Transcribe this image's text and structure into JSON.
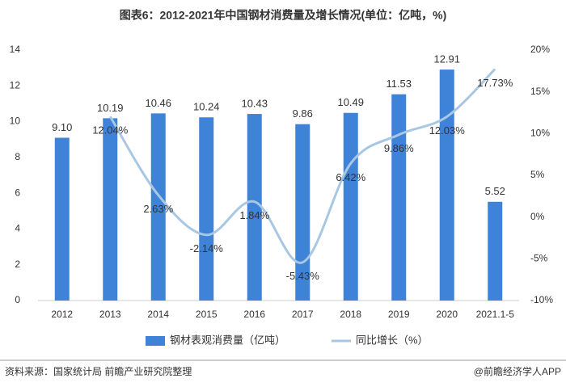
{
  "chart_data": {
    "type": "bar",
    "title": "图表6：2012-2021年中国钢材消费量及增长情况(单位：亿吨，%)",
    "categories": [
      "2012",
      "2013",
      "2014",
      "2015",
      "2016",
      "2017",
      "2018",
      "2019",
      "2020",
      "2021.1-5"
    ],
    "series": [
      {
        "name": "钢材表观消费量（亿吨）",
        "type": "bar",
        "color": "#3f83d8",
        "values": [
          9.1,
          10.19,
          10.46,
          10.24,
          10.43,
          9.86,
          10.49,
          11.53,
          12.91,
          5.52
        ],
        "value_labels": [
          "9.10",
          "10.19",
          "10.46",
          "10.24",
          "10.43",
          "9.86",
          "10.49",
          "11.53",
          "12.91",
          "5.52"
        ]
      },
      {
        "name": "同比增长（%）",
        "type": "line",
        "axis": "y2",
        "color": "#a8c7e3",
        "values": [
          null,
          12.04,
          2.63,
          -2.14,
          1.84,
          -5.43,
          6.42,
          9.86,
          12.03,
          17.73
        ],
        "value_labels": [
          null,
          "12.04%",
          "2.63%",
          "-2.14%",
          "1.84%",
          "-5.43%",
          "6.42%",
          "9.86%",
          "12.03%",
          "17.73%"
        ]
      }
    ],
    "ylim": [
      0,
      14
    ],
    "yticks": [
      0,
      2,
      4,
      6,
      8,
      10,
      12,
      14
    ],
    "y2lim": [
      -10,
      20
    ],
    "y2ticks": [
      {
        "value": -10,
        "label": "-10%"
      },
      {
        "value": -5,
        "label": "-5%"
      },
      {
        "value": 0,
        "label": "0%"
      },
      {
        "value": 5,
        "label": "5%"
      },
      {
        "value": 10,
        "label": "10%"
      },
      {
        "value": 15,
        "label": "15%"
      },
      {
        "value": 20,
        "label": "20%"
      }
    ],
    "source": "资料来源：国家统计局 前瞻产业研究院整理",
    "credit": "@前瞻经济学人APP"
  }
}
